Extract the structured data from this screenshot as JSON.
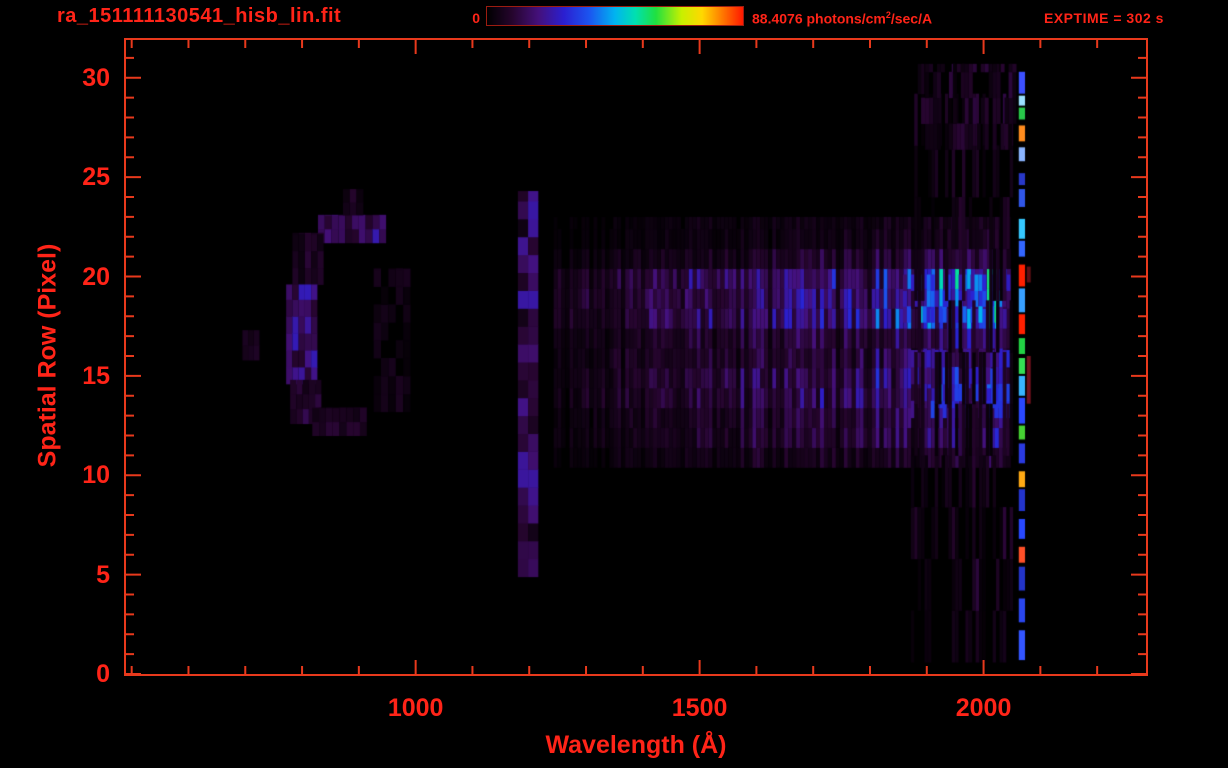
{
  "header": {
    "filename": "ra_151111130541_hisb_lin.fit",
    "exptime": "EXPTIME = 302 s"
  },
  "colorbar": {
    "min_label": "0",
    "max_label_prefix": "88.4076 photons/cm",
    "max_label_sup": "2",
    "max_label_suffix": "/sec/A"
  },
  "axes": {
    "x_title": "Wavelength (Å)",
    "y_title": "Spatial Row (Pixel)"
  },
  "theme": {
    "background": "#000000",
    "text_color": "#ff2418",
    "axis_color": "#e8391c",
    "colorbar_border": "#9c1c10"
  },
  "chart_data": {
    "type": "heatmap",
    "title": "ra_151111130541_hisb_lin.fit",
    "xlabel": "Wavelength (Å)",
    "ylabel": "Spatial Row (Pixel)",
    "xlim": [
      490,
      2286
    ],
    "ylim": [
      0,
      31.9
    ],
    "x_major_ticks": [
      1000,
      1500,
      2000
    ],
    "y_major_ticks": [
      0,
      5,
      10,
      15,
      20,
      25,
      30
    ],
    "x_minor_step": 100,
    "y_minor_step": 1,
    "grid": false,
    "colorbar_range": [
      0,
      88.4076
    ],
    "colorbar_units": "photons/cm2/sec/A",
    "exposure_time_s": 302,
    "colormap_stops": [
      [
        0.0,
        "#000000"
      ],
      [
        0.1,
        "#26052e"
      ],
      [
        0.2,
        "#44107a"
      ],
      [
        0.3,
        "#2b1fd0"
      ],
      [
        0.4,
        "#1b55f0"
      ],
      [
        0.5,
        "#00b4f0"
      ],
      [
        0.58,
        "#00e0b0"
      ],
      [
        0.66,
        "#20e040"
      ],
      [
        0.76,
        "#c8f000"
      ],
      [
        0.84,
        "#ffd800"
      ],
      [
        0.92,
        "#ff7800"
      ],
      [
        1.0,
        "#ff1800"
      ]
    ],
    "features": [
      {
        "name": "ring-top-arc",
        "kind": "cells",
        "x0": 828,
        "x1": 944,
        "r0": 21.7,
        "r1": 23.1,
        "cw": 12,
        "ch": 0.7,
        "i0": 0.13,
        "i1": 0.13,
        "jit": [
          0.5,
          1.6
        ],
        "stripe": [
          0.6,
          1.5
        ],
        "seed": 11
      },
      {
        "name": "ring-top-nub",
        "kind": "cells",
        "x0": 872,
        "x1": 902,
        "r0": 23.1,
        "r1": 24.4,
        "cw": 12,
        "ch": 0.65,
        "i0": 0.07,
        "i1": 0.07,
        "jit": [
          0.4,
          1.4
        ],
        "seed": 12
      },
      {
        "name": "ring-upper-left",
        "kind": "cells",
        "x0": 783,
        "x1": 836,
        "r0": 19.6,
        "r1": 22.2,
        "cw": 11,
        "ch": 0.85,
        "i0": 0.08,
        "i1": 0.08,
        "jit": [
          0.4,
          1.5
        ],
        "seed": 13
      },
      {
        "name": "ring-left-edge",
        "kind": "cells",
        "x0": 772,
        "x1": 820,
        "r0": 14.6,
        "r1": 19.6,
        "cw": 11,
        "ch": 0.85,
        "i0": 0.17,
        "i1": 0.17,
        "jit": [
          0.55,
          1.65
        ],
        "seed": 14
      },
      {
        "name": "ring-lower-left",
        "kind": "cells",
        "x0": 779,
        "x1": 832,
        "r0": 12.6,
        "r1": 14.8,
        "cw": 11,
        "ch": 0.75,
        "i0": 0.1,
        "i1": 0.1,
        "jit": [
          0.4,
          1.5
        ],
        "seed": 15
      },
      {
        "name": "ring-bottom-arc",
        "kind": "cells",
        "x0": 818,
        "x1": 906,
        "r0": 12.0,
        "r1": 13.4,
        "cw": 12,
        "ch": 0.7,
        "i0": 0.08,
        "i1": 0.08,
        "jit": [
          0.4,
          1.4
        ],
        "seed": 16
      },
      {
        "name": "ring-right-edge",
        "kind": "cells",
        "x0": 926,
        "x1": 984,
        "r0": 13.2,
        "r1": 20.4,
        "cw": 13,
        "ch": 0.9,
        "i0": 0.05,
        "i1": 0.05,
        "jit": [
          0.3,
          1.5
        ],
        "sparse": 0.25,
        "seed": 17
      },
      {
        "name": "faint-speck",
        "kind": "cells",
        "x0": 695,
        "x1": 716,
        "r0": 15.8,
        "r1": 17.3,
        "cw": 10,
        "ch": 0.75,
        "i0": 0.07,
        "i1": 0.07,
        "jit": [
          0.5,
          1.3
        ],
        "seed": 18
      },
      {
        "name": "lyman-alpha-airglow-column",
        "kind": "cells",
        "x0": 1180,
        "x1": 1215,
        "r0": 4.9,
        "r1": 24.3,
        "cw": 18,
        "ch": 0.9,
        "i0": 0.14,
        "i1": 0.14,
        "jit": [
          0.2,
          1.9
        ],
        "seed": 21
      },
      {
        "name": "continuum-band",
        "kind": "cells",
        "x0": 1243,
        "x1": 2048,
        "r0": 10.4,
        "r1": 23.0,
        "cw": 7,
        "ch": 1.0,
        "i0": 0.035,
        "i1": 0.2,
        "jit": [
          0.5,
          1.35
        ],
        "stripe": [
          0.3,
          1.45
        ],
        "seed": 31,
        "rowprof": [
          [
            10.4,
            11.5,
            0.55
          ],
          [
            11.5,
            13,
            0.9
          ],
          [
            13,
            15.2,
            1.25
          ],
          [
            15.2,
            17.6,
            1.0
          ],
          [
            17.6,
            20.1,
            1.8
          ],
          [
            20.1,
            21.6,
            0.75
          ],
          [
            21.6,
            23.0,
            0.4
          ]
        ]
      },
      {
        "name": "continuum-hot-upper",
        "kind": "cells",
        "x0": 1858,
        "x1": 2046,
        "r0": 17.7,
        "r1": 20.1,
        "cw": 7,
        "ch": 0.8,
        "i0": 0.3,
        "i1": 0.42,
        "jit": [
          0.7,
          1.3
        ],
        "stripe": [
          0.5,
          1.4
        ],
        "sparse": 0.4,
        "seed": 32
      },
      {
        "name": "continuum-hot-mid",
        "kind": "cells",
        "x0": 1872,
        "x1": 2046,
        "r0": 12.9,
        "r1": 16.3,
        "cw": 7,
        "ch": 0.85,
        "i0": 0.2,
        "i1": 0.33,
        "jit": [
          0.7,
          1.3
        ],
        "stripe": [
          0.5,
          1.4
        ],
        "sparse": 0.5,
        "seed": 33
      },
      {
        "name": "right-faint-streaks",
        "kind": "cells",
        "x0": 1872,
        "x1": 2052,
        "r0": 0.6,
        "r1": 30.7,
        "cw": 6,
        "ch": 2.6,
        "i0": 0.05,
        "i1": 0.06,
        "jit": [
          0.2,
          1.7
        ],
        "stripe": [
          0.3,
          1.6
        ],
        "sparse": 0.55,
        "seed": 34
      },
      {
        "name": "top-right-streaks",
        "kind": "cells",
        "x0": 1890,
        "x1": 2052,
        "r0": 26.4,
        "r1": 30.7,
        "cw": 7,
        "ch": 1.3,
        "i0": 0.07,
        "i1": 0.08,
        "jit": [
          0.3,
          1.6
        ],
        "sparse": 0.4,
        "seed": 35
      },
      {
        "name": "detector-edge-line",
        "kind": "segs",
        "x0": 2062,
        "x1": 2073,
        "segments": [
          [
            29.2,
            30.3,
            "#3c50ff"
          ],
          [
            28.6,
            29.1,
            "#9adfff"
          ],
          [
            27.9,
            28.5,
            "#28c84a"
          ],
          [
            26.8,
            27.6,
            "#ff8c1e"
          ],
          [
            25.8,
            26.5,
            "#8ab4ff"
          ],
          [
            24.6,
            25.2,
            "#2838c8"
          ],
          [
            23.5,
            24.4,
            "#3056e8"
          ],
          [
            21.9,
            22.9,
            "#35c8ff"
          ],
          [
            21.0,
            21.8,
            "#3366ff"
          ],
          [
            19.5,
            20.6,
            "#ff2000"
          ],
          [
            18.2,
            19.4,
            "#38a0ff"
          ],
          [
            17.1,
            18.1,
            "#ff2000"
          ],
          [
            16.1,
            16.9,
            "#22d244"
          ],
          [
            15.1,
            15.9,
            "#35e055"
          ],
          [
            14.0,
            15.0,
            "#38b4ff"
          ],
          [
            12.6,
            13.9,
            "#2a48ff"
          ],
          [
            11.8,
            12.5,
            "#46d233"
          ],
          [
            10.6,
            11.6,
            "#2a3ae0"
          ],
          [
            9.4,
            10.2,
            "#ffaa14"
          ],
          [
            8.2,
            9.3,
            "#2334cc"
          ],
          [
            6.8,
            7.8,
            "#2848ff"
          ],
          [
            5.6,
            6.4,
            "#ff5028"
          ],
          [
            4.2,
            5.4,
            "#2334c8"
          ],
          [
            2.6,
            3.8,
            "#2a46ee"
          ],
          [
            0.7,
            2.2,
            "#3355ff"
          ]
        ]
      },
      {
        "name": "edge-line-companion",
        "kind": "segs",
        "x0": 2076,
        "x1": 2083,
        "segments": [
          [
            13.6,
            16.0,
            "#70101c"
          ],
          [
            19.7,
            20.5,
            "#5c0e14"
          ]
        ]
      }
    ]
  }
}
